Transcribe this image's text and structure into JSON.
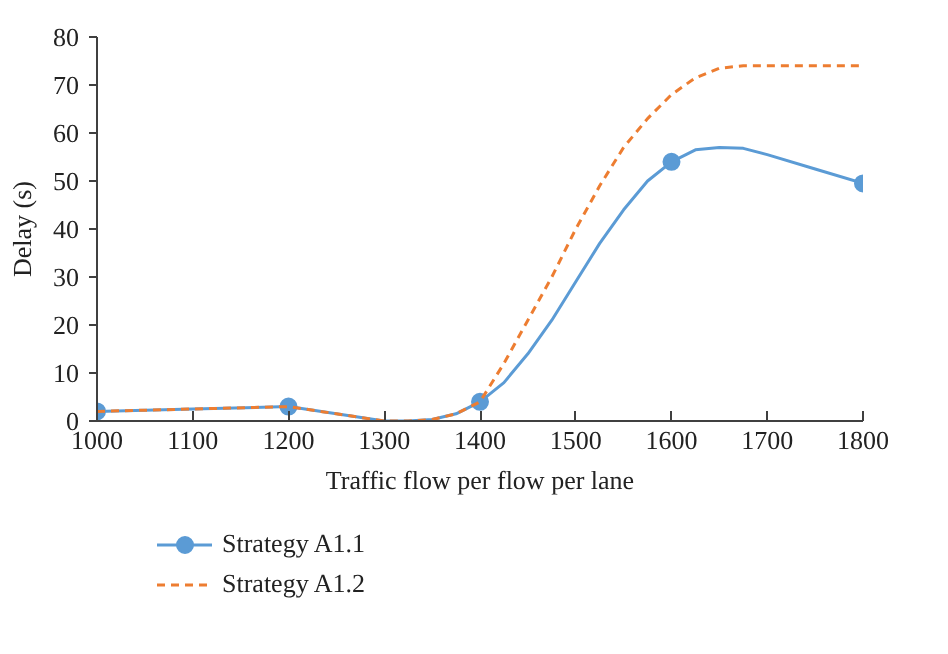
{
  "chart_data": {
    "type": "line",
    "xlabel": "Traffic flow per flow per lane",
    "ylabel": "Delay (s)",
    "xlim": [
      1000,
      1800
    ],
    "xticks": [
      1000,
      1100,
      1200,
      1300,
      1400,
      1500,
      1600,
      1700,
      1800
    ],
    "ylim": [
      0,
      80
    ],
    "yticks": [
      0,
      10,
      20,
      30,
      40,
      50,
      60,
      70,
      80
    ],
    "legend": "bottom",
    "series": [
      {
        "name": "Strategy A1.1",
        "color": "#5b9bd5",
        "line_style": "solid",
        "x": [
          1000,
          1100,
          1200,
          1250,
          1300,
          1325,
          1350,
          1375,
          1400,
          1425,
          1450,
          1475,
          1500,
          1525,
          1550,
          1575,
          1600,
          1625,
          1650,
          1675,
          1700,
          1750,
          1800
        ],
        "values": [
          2,
          2.5,
          3,
          1.5,
          0,
          0,
          0.3,
          1.5,
          4,
          8,
          14,
          21,
          29,
          37,
          44,
          50,
          54,
          56.5,
          57,
          56.8,
          55.5,
          52.5,
          49.5
        ]
      },
      {
        "type": "scatter",
        "color": "#5b9bd5",
        "marker": "circle",
        "x": [
          1000,
          1200,
          1400,
          1600,
          1800
        ],
        "values": [
          2,
          3,
          4,
          54,
          49.5
        ]
      },
      {
        "name": "Strategy A1.2",
        "color": "#ed7d31",
        "line_style": "dashed",
        "x": [
          1000,
          1200,
          1250,
          1300,
          1325,
          1350,
          1375,
          1400,
          1425,
          1450,
          1475,
          1500,
          1525,
          1550,
          1575,
          1600,
          1625,
          1650,
          1675,
          1700,
          1800
        ],
        "values": [
          2,
          3,
          1.5,
          0,
          0,
          0.3,
          1.5,
          4,
          12,
          21,
          30,
          40,
          49,
          57,
          63,
          68,
          71.5,
          73.5,
          74,
          74,
          74
        ]
      }
    ]
  }
}
